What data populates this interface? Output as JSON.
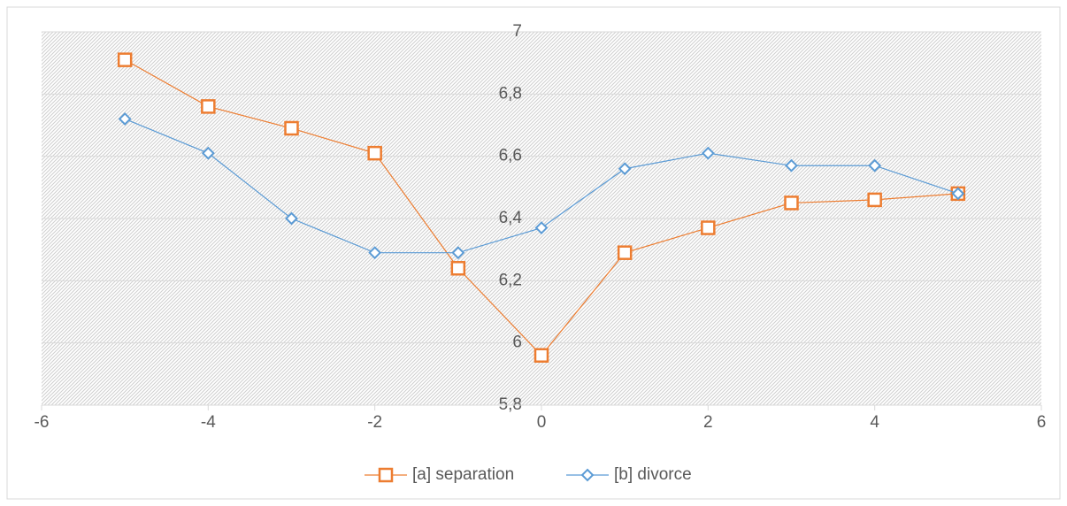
{
  "chart_data": {
    "type": "line",
    "x": [
      -5,
      -4,
      -3,
      -2,
      -1,
      0,
      1,
      2,
      3,
      4,
      5
    ],
    "series": [
      {
        "name": "[a] separation",
        "color": "#ed7d31",
        "marker": "square",
        "values": [
          6.91,
          6.76,
          6.69,
          6.61,
          6.24,
          5.96,
          6.29,
          6.37,
          6.45,
          6.46,
          6.48
        ]
      },
      {
        "name": "[b] divorce",
        "color": "#5b9bd5",
        "marker": "diamond",
        "values": [
          6.72,
          6.61,
          6.4,
          6.29,
          6.29,
          6.37,
          6.56,
          6.61,
          6.57,
          6.57,
          6.48
        ]
      }
    ],
    "xlim": [
      -6,
      6
    ],
    "xticks": [
      -6,
      -4,
      -2,
      0,
      2,
      4,
      6
    ],
    "ylim": [
      5.8,
      7
    ],
    "yticks": [
      {
        "value": 5.8,
        "label": "5,8"
      },
      6,
      {
        "value": 6.2,
        "label": "6,2"
      },
      {
        "value": 6.4,
        "label": "6,4"
      },
      {
        "value": 6.6,
        "label": "6,6"
      },
      {
        "value": 6.8,
        "label": "6,8"
      },
      7
    ],
    "grid": true,
    "legend": "bottom"
  }
}
